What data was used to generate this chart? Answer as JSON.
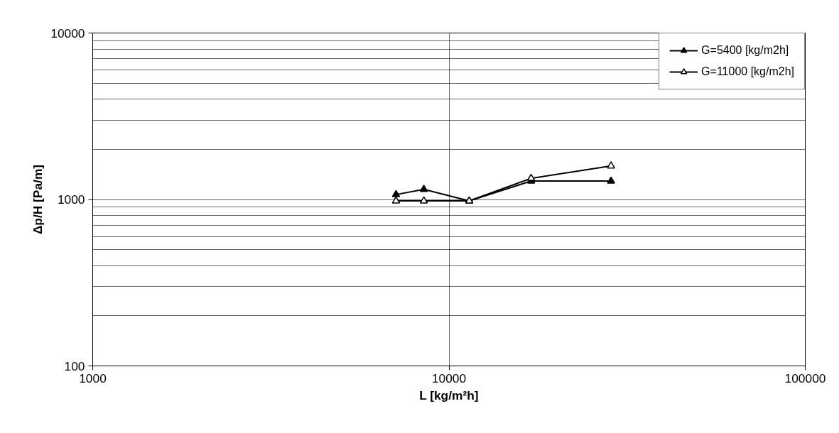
{
  "chart_data": {
    "type": "line",
    "xlabel": "L [kg/m²h]",
    "ylabel": "Δp/H [Pa/m]",
    "xlim": [
      1000,
      100000
    ],
    "xticks": [
      1000,
      10000,
      100000
    ],
    "ylim": [
      100,
      10000
    ],
    "yticks": [
      100,
      1000,
      10000
    ],
    "log": "xy",
    "grid": true,
    "legend": "top right",
    "marker": "triangle",
    "line_style": "solid",
    "series": [
      {
        "name": "G=5400 [kg/m2h]",
        "color": "#000000",
        "x": [
          7100,
          8500,
          11400,
          17000,
          28500
        ],
        "values": [
          1070,
          1150,
          980,
          1290,
          1290
        ]
      },
      {
        "name": "G=11000 [kg/m2h]",
        "color": "#000000",
        "x": [
          7100,
          8500,
          11400,
          17000,
          28500
        ],
        "values": [
          980,
          980,
          980,
          1340,
          1590
        ]
      }
    ]
  }
}
